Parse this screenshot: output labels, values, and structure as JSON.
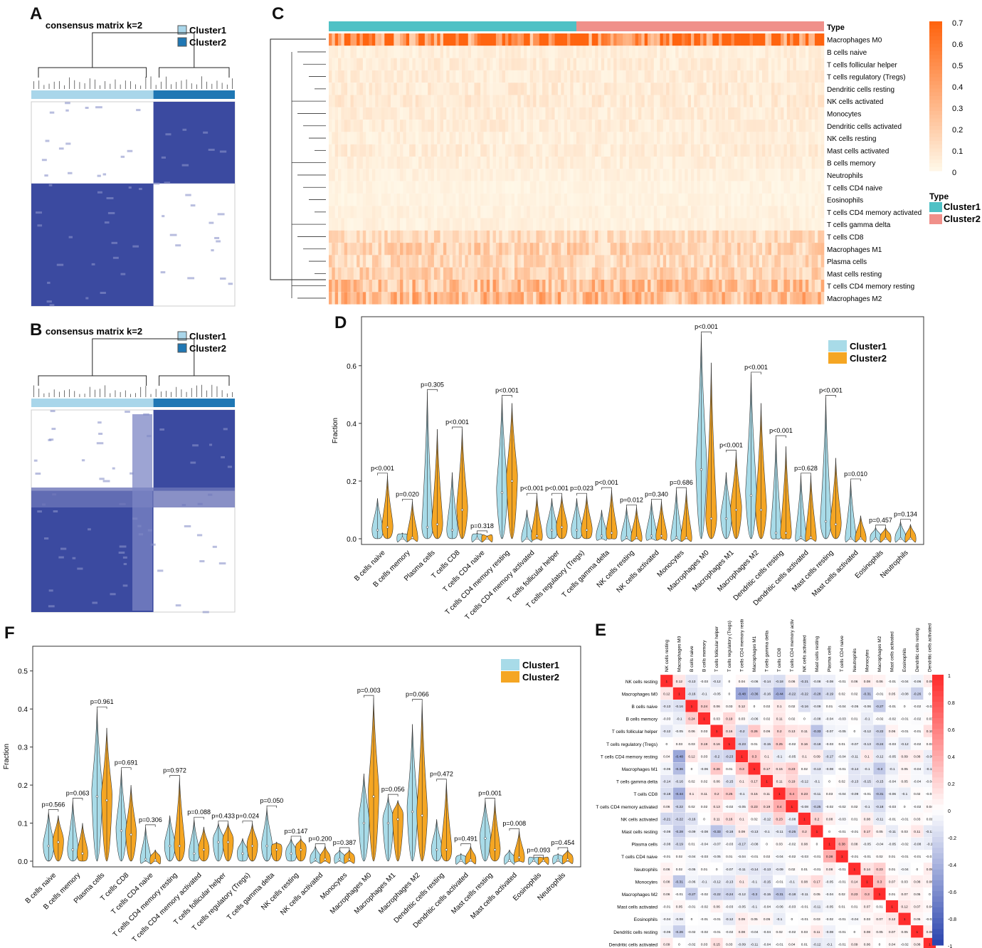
{
  "colors": {
    "cluster1_light": "#a9d6ea",
    "cluster1_teal": "#4fc1c5",
    "cluster2_dark": "#1f77b4",
    "cluster2_salmon": "#f0908a",
    "orange": "#f39b1c",
    "violin1": "#a8dbe8",
    "violin2": "#f5a623",
    "matrix_blue": "#3b4aa0"
  },
  "panel_a": {
    "label": "A",
    "title": "consensus matrix k=2",
    "legend": [
      "Cluster1",
      "Cluster2"
    ]
  },
  "panel_b": {
    "label": "B",
    "title": "consensus matrix k=2",
    "legend": [
      "Cluster1",
      "Cluster2"
    ]
  },
  "panel_c": {
    "label": "C",
    "type_label": "Type",
    "rows": [
      "Macrophages M0",
      "B cells naive",
      "T cells follicular helper",
      "T cells regulatory (Tregs)",
      "Dendritic cells resting",
      "NK cells activated",
      "Monocytes",
      "Dendritic cells activated",
      "NK cells resting",
      "Mast cells activated",
      "B cells memory",
      "Neutrophils",
      "T cells CD4 naive",
      "Eosinophils",
      "T cells CD4 memory activated",
      "T cells gamma delta",
      "T cells CD8",
      "Macrophages M1",
      "Plasma cells",
      "Mast cells resting",
      "T cells CD4 memory resting",
      "Macrophages M2"
    ],
    "row_intensity": [
      0.62,
      0.05,
      0.06,
      0.06,
      0.07,
      0.07,
      0.06,
      0.06,
      0.05,
      0.06,
      0.05,
      0.04,
      0.03,
      0.03,
      0.04,
      0.04,
      0.14,
      0.18,
      0.15,
      0.17,
      0.26,
      0.28
    ],
    "colorbar_ticks": [
      "0.7",
      "0.6",
      "0.5",
      "0.4",
      "0.3",
      "0.2",
      "0.1",
      "0"
    ],
    "legend_title": "Type",
    "legend": [
      "Cluster1",
      "Cluster2"
    ]
  },
  "chart_data": [
    {
      "id": "D",
      "type": "violin",
      "label": "D",
      "ylabel": "Fraction",
      "ylim": [
        0,
        0.75
      ],
      "yticks": [
        "0.0",
        "0.2",
        "0.4",
        "0.6"
      ],
      "legend": [
        "Cluster1",
        "Cluster2"
      ],
      "categories": [
        "B cells naive",
        "B cells memory",
        "Plasma cells",
        "T cells CD8",
        "T cells CD4 naive",
        "T cells CD4 memory resting",
        "T cells CD4 memory activated",
        "T cells follicular helper",
        "T cells regulatory (Tregs)",
        "T cells gamma delta",
        "NK cells resting",
        "NK cells activated",
        "Monocytes",
        "Macrophages M0",
        "Macrophages M1",
        "Macrophages M2",
        "Dendritic cells resting",
        "Dendritic cells activated",
        "Mast cells resting",
        "Mast cells activated",
        "Eosinophils",
        "Neutrophils"
      ],
      "pvalues": [
        "p<0.001",
        "p=0.020",
        "p=0.305",
        "p<0.001",
        "p=0.318",
        "p<0.001",
        "p<0.001",
        "p<0.001",
        "p=0.023",
        "p<0.001",
        "p=0.012",
        "p=0.340",
        "p=0.686",
        "p<0.001",
        "p<0.001",
        "p<0.001",
        "p<0.001",
        "p=0.628",
        "p<0.001",
        "p=0.010",
        "p=0.457",
        "p=0.134"
      ],
      "series": [
        {
          "name": "Cluster1",
          "median": [
            0.03,
            0.002,
            0.04,
            0.03,
            0.002,
            0.16,
            0.002,
            0.03,
            0.03,
            0.01,
            0.005,
            0.01,
            0.005,
            0.24,
            0.07,
            0.15,
            0.02,
            0.005,
            0.06,
            0.002,
            0.001,
            0.001
          ],
          "max": [
            0.14,
            0.02,
            0.51,
            0.23,
            0.02,
            0.49,
            0.1,
            0.14,
            0.14,
            0.1,
            0.11,
            0.13,
            0.17,
            0.71,
            0.23,
            0.57,
            0.35,
            0.22,
            0.49,
            0.2,
            0.04,
            0.06
          ]
        },
        {
          "name": "Cluster2",
          "median": [
            0.04,
            0.004,
            0.05,
            0.1,
            0.002,
            0.2,
            0.01,
            0.04,
            0.03,
            0.02,
            0.004,
            0.01,
            0.004,
            0.07,
            0.1,
            0.1,
            0.02,
            0.005,
            0.05,
            0.002,
            0.001,
            0.001
          ],
          "max": [
            0.22,
            0.13,
            0.38,
            0.38,
            0.01,
            0.47,
            0.15,
            0.15,
            0.15,
            0.17,
            0.11,
            0.13,
            0.17,
            0.61,
            0.3,
            0.47,
            0.32,
            0.22,
            0.28,
            0.08,
            0.04,
            0.05
          ]
        }
      ]
    },
    {
      "id": "F",
      "type": "violin",
      "label": "F",
      "ylabel": "Fraction",
      "ylim": [
        0,
        0.55
      ],
      "yticks": [
        "0.0",
        "0.1",
        "0.2",
        "0.3",
        "0.4",
        "0.5"
      ],
      "legend": [
        "Cluster1",
        "Cluster2"
      ],
      "categories": [
        "B cells naive",
        "B cells memory",
        "Plasma cells",
        "T cells CD8",
        "T cells CD4 naive",
        "T cells CD4 memory resting",
        "T cells CD4 memory activated",
        "T cells follicular helper",
        "T cells regulatory (Tregs)",
        "T cells gamma delta",
        "NK cells resting",
        "NK cells activated",
        "Monocytes",
        "Macrophages M0",
        "Macrophages M1",
        "Macrophages M2",
        "Dendritic cells resting",
        "Dendritic cells activated",
        "Mast cells resting",
        "Mast cells activated",
        "Eosinophils",
        "Neutrophils"
      ],
      "pvalues": [
        "p=0.566",
        "p=0.063",
        "p=0.961",
        "p=0.691",
        "p=0.306",
        "p=0.972",
        "p=0.088",
        "p=0.433",
        "p=0.024",
        "p=0.050",
        "p=0.147",
        "p=0.200",
        "p=0.387",
        "p=0.003",
        "p=0.056",
        "p=0.066",
        "p=0.472",
        "p=0.491",
        "p=0.001",
        "p=0.008",
        "p=0.093",
        "p=0.454"
      ],
      "series": [
        {
          "name": "Cluster1",
          "median": [
            0.04,
            0.03,
            0.17,
            0.08,
            0.005,
            0.04,
            0.02,
            0.05,
            0.02,
            0.04,
            0.02,
            0.005,
            0.005,
            0.1,
            0.1,
            0.13,
            0.03,
            0.002,
            0.06,
            0.002,
            0.001,
            0.003
          ],
          "max": [
            0.13,
            0.16,
            0.4,
            0.24,
            0.09,
            0.12,
            0.11,
            0.1,
            0.06,
            0.14,
            0.06,
            0.04,
            0.03,
            0.23,
            0.17,
            0.36,
            0.11,
            0.02,
            0.16,
            0.03,
            0.01,
            0.02
          ]
        },
        {
          "name": "Cluster2",
          "median": [
            0.05,
            0.02,
            0.16,
            0.07,
            0.003,
            0.04,
            0.03,
            0.05,
            0.04,
            0.03,
            0.03,
            0.005,
            0.005,
            0.17,
            0.11,
            0.12,
            0.03,
            0.003,
            0.03,
            0.01,
            0.001,
            0.004
          ],
          "max": [
            0.12,
            0.1,
            0.35,
            0.2,
            0.03,
            0.22,
            0.09,
            0.1,
            0.1,
            0.05,
            0.06,
            0.04,
            0.03,
            0.43,
            0.16,
            0.42,
            0.21,
            0.04,
            0.16,
            0.08,
            0.01,
            0.03
          ]
        }
      ]
    },
    {
      "id": "E",
      "type": "heatmap",
      "label": "E",
      "labels": [
        "NK cells resting",
        "Macrophages M0",
        "B cells naive",
        "B cells memory",
        "T cells follicular helper",
        "T cells regulatory (Tregs)",
        "T cells CD4 memory resting",
        "Macrophages M1",
        "T cells gamma delta",
        "T cells CD8",
        "T cells CD4 memory activated",
        "NK cells activated",
        "Mast cells resting",
        "Plasma cells",
        "T cells CD4 naive",
        "Neutrophils",
        "Monocytes",
        "Macrophages M2",
        "Mast cells activated",
        "Eosinophils",
        "Dendritic cells resting",
        "Dendritic cells activated"
      ],
      "matrix": [
        [
          1,
          0.12,
          -0.13,
          -0.03,
          -0.12,
          0,
          0.04,
          -0.06,
          -0.14,
          -0.18,
          0.06,
          -0.21,
          -0.08,
          -0.08,
          -0.01,
          0.06,
          0.08,
          0.06,
          -0.01,
          -0.04,
          -0.06,
          0.09
        ],
        [
          0.12,
          1,
          -0.16,
          -0.1,
          -0.05,
          0,
          -0.48,
          -0.36,
          -0.16,
          -0.44,
          -0.22,
          -0.22,
          -0.28,
          -0.19,
          0.02,
          0.02,
          -0.31,
          -0.01,
          0.05,
          -0.08,
          -0.26,
          0
        ],
        [
          -0.13,
          -0.16,
          1,
          0.24,
          0.06,
          0.03,
          0.12,
          0,
          0.02,
          0.1,
          0.02,
          -0.16,
          -0.09,
          0.01,
          -0.04,
          -0.05,
          -0.06,
          -0.27,
          -0.01,
          0,
          -0.02,
          -0.02
        ],
        [
          -0.03,
          -0.1,
          0.24,
          1,
          0.03,
          0.19,
          0.03,
          -0.06,
          0.02,
          0.11,
          0.02,
          0,
          -0.08,
          -0.04,
          -0.03,
          0.01,
          -0.1,
          -0.02,
          -0.02,
          -0.01,
          -0.02,
          0.03
        ],
        [
          -0.12,
          -0.05,
          0.06,
          0.03,
          1,
          0.16,
          -0.2,
          0.26,
          0.06,
          0.2,
          0.13,
          0.11,
          -0.33,
          -0.07,
          -0.05,
          0,
          -0.12,
          -0.22,
          0.06,
          -0.01,
          -0.01,
          0.15
        ],
        [
          0,
          0.03,
          0.03,
          0.19,
          0.16,
          1,
          -0.23,
          0.01,
          -0.15,
          0.25,
          -0.02,
          0.16,
          -0.18,
          -0.03,
          0.01,
          -0.07,
          -0.13,
          -0.24,
          -0.03,
          -0.12,
          -0.02,
          0.03
        ],
        [
          0.04,
          -0.48,
          0.12,
          0.03,
          -0.2,
          -0.23,
          1,
          0.3,
          0.1,
          -0.1,
          -0.05,
          0.1,
          0.09,
          -0.17,
          -0.04,
          -0.11,
          0.1,
          -0.12,
          -0.05,
          0.09,
          0.08,
          -0.09
        ],
        [
          -0.06,
          -0.36,
          0,
          -0.06,
          0.26,
          0.01,
          0.3,
          1,
          0.17,
          0.15,
          0.23,
          0.02,
          -0.13,
          -0.08,
          -0.01,
          -0.14,
          -0.1,
          -0.3,
          -0.1,
          0.05,
          -0.04,
          -0.11
        ],
        [
          -0.14,
          -0.16,
          0.02,
          0.02,
          0.06,
          -0.15,
          0.1,
          0.17,
          1,
          0.11,
          0.19,
          -0.12,
          -0.1,
          0,
          0.02,
          -0.13,
          -0.15,
          -0.15,
          -0.04,
          0.05,
          -0.04,
          -0.04
        ],
        [
          -0.18,
          -0.44,
          0.1,
          0.11,
          0.2,
          0.25,
          -0.1,
          0.15,
          0.11,
          1,
          0.4,
          0.23,
          -0.11,
          0.03,
          -0.04,
          -0.09,
          -0.01,
          -0.31,
          -0.06,
          -0.1,
          0.02,
          -0.01
        ],
        [
          0.06,
          -0.22,
          0.02,
          0.02,
          0.13,
          -0.02,
          -0.05,
          0.23,
          0.19,
          0.4,
          1,
          -0.08,
          -0.25,
          -0.02,
          -0.02,
          0.02,
          -0.1,
          -0.18,
          -0.03,
          0,
          -0.02,
          0.04
        ],
        [
          -0.21,
          -0.22,
          -0.16,
          0,
          0.11,
          0.16,
          0.1,
          0.02,
          -0.12,
          0.23,
          -0.08,
          1,
          0.2,
          0.08,
          -0.03,
          0.01,
          0.08,
          -0.11,
          -0.01,
          -0.01,
          0.03,
          0.01
        ],
        [
          -0.08,
          -0.28,
          -0.09,
          -0.08,
          -0.33,
          -0.18,
          0.09,
          -0.13,
          -0.1,
          -0.11,
          -0.25,
          0.2,
          1,
          0,
          -0.01,
          -0.01,
          0.17,
          0.05,
          -0.11,
          0.03,
          0.11,
          -0.12
        ],
        [
          -0.08,
          -0.19,
          0.01,
          -0.04,
          -0.07,
          -0.03,
          -0.17,
          -0.08,
          0,
          0.03,
          -0.02,
          0.08,
          0,
          1,
          0.38,
          0.08,
          -0.05,
          -0.04,
          -0.05,
          -0.02,
          -0.08,
          -0.1
        ],
        [
          -0.01,
          0.02,
          -0.04,
          -0.03,
          -0.05,
          0.01,
          -0.04,
          -0.01,
          0.02,
          -0.04,
          -0.02,
          -0.03,
          -0.01,
          0.38,
          1,
          -0.01,
          -0.01,
          0.02,
          0.01,
          -0.01,
          -0.01,
          -0.01
        ],
        [
          0.06,
          0.02,
          -0.05,
          0.01,
          0,
          -0.07,
          -0.11,
          -0.14,
          -0.13,
          -0.09,
          0.02,
          0.01,
          -0.01,
          0.08,
          -0.01,
          1,
          0.14,
          0.23,
          0.01,
          -0.04,
          0,
          0.09
        ],
        [
          0.08,
          -0.31,
          -0.06,
          -0.1,
          -0.12,
          -0.13,
          0.1,
          -0.1,
          -0.15,
          -0.01,
          -0.1,
          0.08,
          0.17,
          -0.05,
          -0.01,
          0.14,
          1,
          0.3,
          0.07,
          0.03,
          0.08,
          0.06
        ],
        [
          0.06,
          -0.01,
          -0.27,
          -0.02,
          -0.22,
          -0.24,
          -0.12,
          -0.3,
          -0.15,
          -0.31,
          -0.18,
          -0.11,
          0.05,
          -0.04,
          0.02,
          0.23,
          0.3,
          1,
          0.01,
          0.07,
          0.05,
          0
        ],
        [
          -0.01,
          0.05,
          -0.01,
          -0.02,
          0.06,
          -0.03,
          -0.05,
          -0.1,
          -0.04,
          -0.06,
          -0.03,
          -0.01,
          -0.11,
          -0.05,
          0.01,
          0.01,
          0.07,
          0.01,
          1,
          0.12,
          0.07,
          0.04
        ],
        [
          -0.04,
          -0.08,
          0,
          -0.01,
          -0.01,
          -0.12,
          0.09,
          0.05,
          0.05,
          -0.1,
          0,
          -0.01,
          0.03,
          -0.02,
          -0.01,
          -0.04,
          0.03,
          0.07,
          0.12,
          1,
          0.05,
          -0.02
        ],
        [
          -0.06,
          -0.26,
          -0.02,
          -0.02,
          -0.01,
          -0.02,
          0.08,
          -0.04,
          -0.04,
          0.02,
          -0.02,
          0.03,
          0.11,
          -0.08,
          -0.01,
          0,
          0.08,
          0.05,
          0.07,
          0.05,
          1,
          0.08
        ],
        [
          0.09,
          0,
          -0.02,
          0.03,
          0.15,
          0.03,
          -0.09,
          -0.11,
          -0.04,
          -0.01,
          0.04,
          0.01,
          -0.12,
          -0.1,
          -0.01,
          0.09,
          0.06,
          0,
          0.04,
          -0.02,
          0.08,
          1
        ]
      ],
      "colorbar_ticks": [
        "1",
        "0.8",
        "0.6",
        "0.4",
        "0.2",
        "0",
        "-0.2",
        "-0.4",
        "-0.6",
        "-0.8",
        "-1"
      ]
    }
  ]
}
